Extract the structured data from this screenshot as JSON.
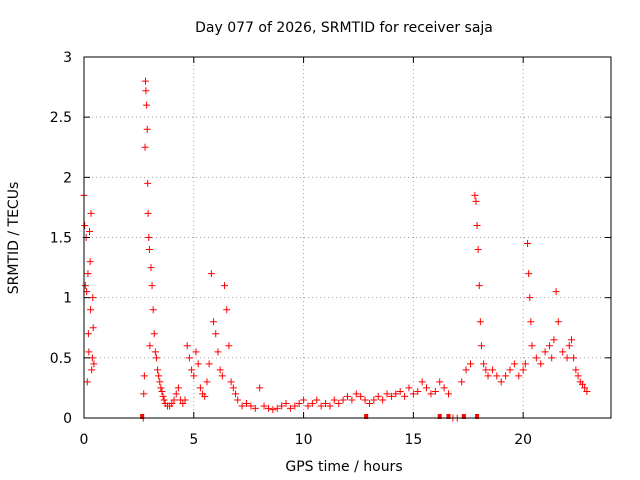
{
  "chart_data": {
    "type": "scatter",
    "title": "Day 077 of 2026, SRMTID for receiver saja",
    "xlabel": "GPS time / hours",
    "ylabel": "SRMTID / TECUs",
    "xlim": [
      0,
      24
    ],
    "ylim": [
      0,
      3
    ],
    "x_ticks": [
      0,
      5,
      10,
      15,
      20
    ],
    "x_tick_labels": [
      "0",
      "5",
      "10",
      "15",
      "20"
    ],
    "y_ticks": [
      0,
      0.5,
      1,
      1.5,
      2,
      2.5,
      3
    ],
    "y_tick_labels": [
      "0",
      "0.5",
      "1",
      "1.5",
      "2",
      "2.5",
      "3"
    ],
    "grid": true,
    "marker": "+",
    "series": [
      {
        "name": "SRMTID",
        "color": "#ff0000",
        "x": [
          0.0,
          0.03,
          0.06,
          0.1,
          0.12,
          0.15,
          0.18,
          0.2,
          0.22,
          0.25,
          0.28,
          0.3,
          0.32,
          0.35,
          0.38,
          0.4,
          0.42,
          0.45,
          2.7,
          2.72,
          2.75,
          2.78,
          2.8,
          2.82,
          2.85,
          2.88,
          2.9,
          2.92,
          2.95,
          2.98,
          3.0,
          3.05,
          3.1,
          3.15,
          3.2,
          3.25,
          3.3,
          3.35,
          3.4,
          3.45,
          3.5,
          3.55,
          3.6,
          3.65,
          3.7,
          3.8,
          3.9,
          4.0,
          4.1,
          4.2,
          4.3,
          4.4,
          4.5,
          4.6,
          4.7,
          4.8,
          4.9,
          5.0,
          5.1,
          5.2,
          5.3,
          5.4,
          5.5,
          5.6,
          5.7,
          5.8,
          5.9,
          6.0,
          6.1,
          6.2,
          6.3,
          6.4,
          6.5,
          6.6,
          6.7,
          6.8,
          6.9,
          7.0,
          7.2,
          7.4,
          7.6,
          7.8,
          8.0,
          8.2,
          8.4,
          8.6,
          8.8,
          9.0,
          9.2,
          9.4,
          9.6,
          9.8,
          10.0,
          10.2,
          10.4,
          10.6,
          10.8,
          11.0,
          11.2,
          11.4,
          11.6,
          11.8,
          12.0,
          12.2,
          12.4,
          12.6,
          12.8,
          13.0,
          13.2,
          13.4,
          13.6,
          13.8,
          14.0,
          14.2,
          14.4,
          14.6,
          14.8,
          15.0,
          15.2,
          15.4,
          15.6,
          15.8,
          16.0,
          16.2,
          16.4,
          16.6,
          16.8,
          17.0,
          17.2,
          17.4,
          17.6,
          17.8,
          17.85,
          17.9,
          17.95,
          18.0,
          18.05,
          18.1,
          18.2,
          18.3,
          18.4,
          18.6,
          18.8,
          19.0,
          19.2,
          19.4,
          19.6,
          19.8,
          20.0,
          20.1,
          20.2,
          20.25,
          20.3,
          20.35,
          20.4,
          20.6,
          20.8,
          21.0,
          21.2,
          21.3,
          21.4,
          21.5,
          21.6,
          21.8,
          22.0,
          22.1,
          22.2,
          22.3,
          22.4,
          22.5,
          22.6,
          22.7,
          22.8,
          22.9
        ],
        "y": [
          1.85,
          1.6,
          1.1,
          1.5,
          1.05,
          0.3,
          1.2,
          0.7,
          0.55,
          1.55,
          1.3,
          0.9,
          1.7,
          0.4,
          0.5,
          1.0,
          0.75,
          0.45,
          0.0,
          0.2,
          0.35,
          2.25,
          2.8,
          2.72,
          2.6,
          2.4,
          1.95,
          1.7,
          1.5,
          1.4,
          0.6,
          1.25,
          1.1,
          0.9,
          0.7,
          0.55,
          0.5,
          0.4,
          0.35,
          0.3,
          0.25,
          0.22,
          0.18,
          0.15,
          0.12,
          0.1,
          0.1,
          0.12,
          0.15,
          0.2,
          0.25,
          0.15,
          0.12,
          0.15,
          0.6,
          0.5,
          0.4,
          0.35,
          0.55,
          0.45,
          0.25,
          0.2,
          0.18,
          0.3,
          0.45,
          1.2,
          0.8,
          0.7,
          0.55,
          0.4,
          0.35,
          1.1,
          0.9,
          0.6,
          0.3,
          0.25,
          0.2,
          0.15,
          0.1,
          0.12,
          0.1,
          0.08,
          0.25,
          0.1,
          0.08,
          0.07,
          0.08,
          0.1,
          0.12,
          0.08,
          0.1,
          0.12,
          0.15,
          0.1,
          0.12,
          0.15,
          0.1,
          0.12,
          0.1,
          0.15,
          0.12,
          0.15,
          0.18,
          0.15,
          0.2,
          0.18,
          0.15,
          0.12,
          0.15,
          0.18,
          0.15,
          0.2,
          0.18,
          0.2,
          0.22,
          0.18,
          0.25,
          0.2,
          0.22,
          0.3,
          0.25,
          0.2,
          0.22,
          0.3,
          0.25,
          0.2,
          0.0,
          0.0,
          0.3,
          0.4,
          0.45,
          1.85,
          1.8,
          1.6,
          1.4,
          1.1,
          0.8,
          0.6,
          0.45,
          0.4,
          0.35,
          0.4,
          0.35,
          0.3,
          0.35,
          0.4,
          0.45,
          0.35,
          0.4,
          0.45,
          1.45,
          1.2,
          1.0,
          0.8,
          0.6,
          0.5,
          0.45,
          0.55,
          0.6,
          0.5,
          0.65,
          1.05,
          0.8,
          0.55,
          0.5,
          0.6,
          0.65,
          0.5,
          0.4,
          0.35,
          0.3,
          0.28,
          0.25,
          0.22
        ]
      }
    ],
    "zero_markers_x": [
      2.65,
      12.85,
      16.2,
      16.6,
      17.3,
      17.9
    ],
    "annotations": []
  }
}
